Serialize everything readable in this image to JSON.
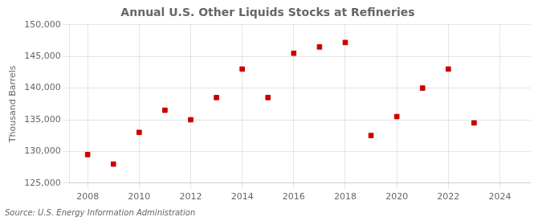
{
  "chart_data": {
    "type": "scatter",
    "title": "Annual U.S. Other Liquids Stocks at Refineries",
    "ylabel": "Thousand Barrels",
    "annotation": "Source: U.S. Energy Information Administration",
    "x": [
      2008,
      2009,
      2010,
      2011,
      2012,
      2013,
      2014,
      2015,
      2016,
      2017,
      2018,
      2019,
      2020,
      2021,
      2022,
      2023,
      2024
    ],
    "values": [
      129500,
      128000,
      133000,
      136500,
      135000,
      138500,
      143000,
      138500,
      145500,
      146500,
      147200,
      132500,
      135500,
      140000,
      143000,
      134500,
      null
    ],
    "xlim": [
      2007.3,
      2025.2
    ],
    "xticks": [
      2008,
      2010,
      2012,
      2014,
      2016,
      2018,
      2020,
      2022,
      2024
    ],
    "ylim": [
      125000,
      150000
    ],
    "yticks": [
      {
        "value": 125000,
        "label": "125,000"
      },
      {
        "value": 130000,
        "label": "130,000"
      },
      {
        "value": 135000,
        "label": "135,000"
      },
      {
        "value": 140000,
        "label": "140,000"
      },
      {
        "value": 145000,
        "label": "145,000"
      },
      {
        "value": 150000,
        "label": "150,000"
      }
    ],
    "color": "#cc0000",
    "marker": "square",
    "grid": true
  }
}
